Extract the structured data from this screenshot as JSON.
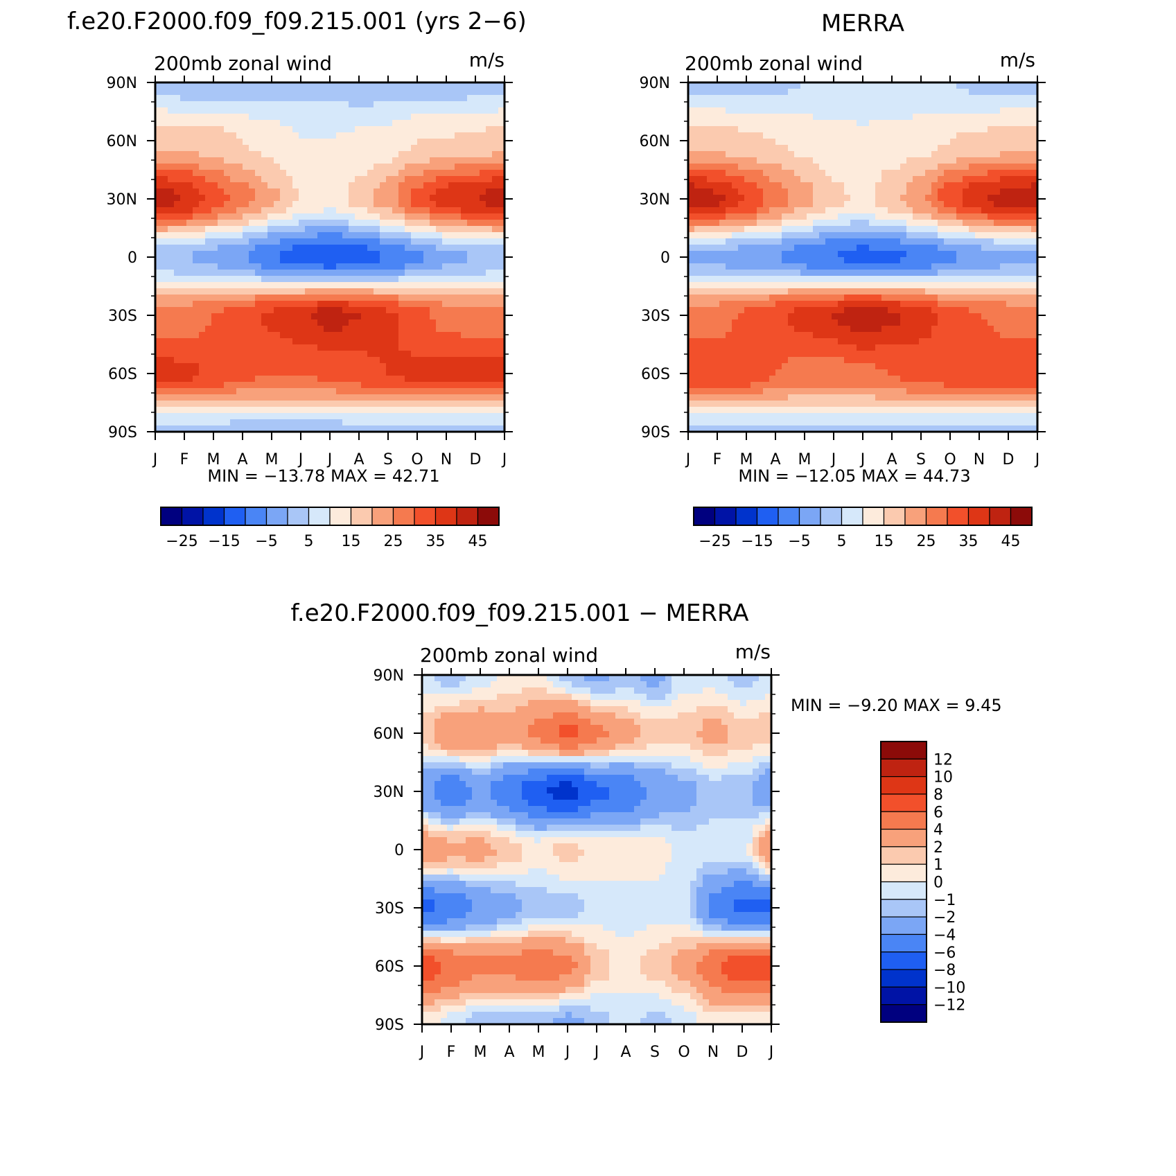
{
  "chart_data": [
    {
      "type": "heatmap",
      "title": "f.e20.F2000.f09_f09.215.001 (yrs 2−6)",
      "subtitle": "200mb  zonal  wind",
      "units": "m/s",
      "x_ticks": [
        "J",
        "F",
        "M",
        "A",
        "M",
        "J",
        "J",
        "A",
        "S",
        "O",
        "N",
        "D",
        "J"
      ],
      "y_ticks": [
        "90N",
        "60N",
        "30N",
        "0",
        "30S",
        "60S",
        "90S"
      ],
      "ylim": [
        -90,
        90
      ],
      "stats": "MIN  =  −13.78  MAX  =    42.71",
      "min": -13.78,
      "max": 42.71,
      "grid_lat": [
        90,
        60,
        30,
        0,
        -30,
        -60,
        -90
      ],
      "z": [
        [
          4,
          2,
          2,
          2,
          2,
          3,
          3,
          2,
          2,
          2,
          2,
          3,
          4
        ],
        [
          17,
          18,
          17,
          15,
          13,
          10,
          10,
          11,
          12,
          15,
          15,
          16,
          17
        ],
        [
          43,
          40,
          33,
          27,
          21,
          15,
          12,
          17,
          23,
          32,
          38,
          40,
          43
        ],
        [
          1,
          0,
          -2,
          -5,
          -10,
          -13,
          -14,
          -13,
          -10,
          -6,
          -2,
          0,
          1
        ],
        [
          26,
          27,
          30,
          33,
          36,
          39,
          42,
          40,
          36,
          32,
          28,
          27,
          26
        ],
        [
          37,
          36,
          34,
          31,
          30,
          30,
          31,
          33,
          35,
          36,
          37,
          37,
          37
        ],
        [
          3,
          3,
          3,
          3,
          3,
          3,
          3,
          3,
          3,
          3,
          3,
          3,
          3
        ]
      ]
    },
    {
      "type": "heatmap",
      "title": "MERRA",
      "subtitle": "200mb  zonal  wind",
      "units": "m/s",
      "x_ticks": [
        "J",
        "F",
        "M",
        "A",
        "M",
        "J",
        "J",
        "A",
        "S",
        "O",
        "N",
        "D",
        "J"
      ],
      "y_ticks": [
        "90N",
        "60N",
        "30N",
        "0",
        "30S",
        "60S",
        "90S"
      ],
      "ylim": [
        -90,
        90
      ],
      "stats": "MIN  =  −12.05  MAX  =    44.73",
      "min": -12.05,
      "max": 44.73,
      "grid_lat": [
        90,
        60,
        30,
        0,
        -30,
        -60,
        -90
      ],
      "z": [
        [
          4,
          4,
          4,
          4,
          5,
          6,
          6,
          6,
          5,
          5,
          4,
          4,
          4
        ],
        [
          17,
          17,
          16,
          15,
          13,
          12,
          11,
          12,
          13,
          15,
          16,
          17,
          17
        ],
        [
          44,
          41,
          35,
          28,
          22,
          16,
          14,
          18,
          24,
          33,
          39,
          42,
          44
        ],
        [
          -1,
          -2,
          -3,
          -5,
          -8,
          -10,
          -12,
          -11,
          -9,
          -6,
          -3,
          -2,
          -1
        ],
        [
          27,
          28,
          31,
          34,
          37,
          40,
          44,
          41,
          37,
          33,
          30,
          28,
          27
        ],
        [
          35,
          34,
          33,
          30,
          28,
          28,
          29,
          30,
          32,
          33,
          34,
          35,
          35
        ],
        [
          4,
          4,
          4,
          4,
          4,
          4,
          4,
          4,
          4,
          4,
          4,
          4,
          4
        ]
      ]
    },
    {
      "type": "heatmap",
      "title": "f.e20.F2000.f09_f09.215.001  −  MERRA",
      "subtitle": "200mb  zonal  wind",
      "units": "m/s",
      "x_ticks": [
        "J",
        "F",
        "M",
        "A",
        "M",
        "J",
        "J",
        "A",
        "S",
        "O",
        "N",
        "D",
        "J"
      ],
      "y_ticks": [
        "90N",
        "60N",
        "30N",
        "0",
        "30S",
        "60S",
        "90S"
      ],
      "ylim": [
        -90,
        90
      ],
      "stats": "MIN  =    −9.20  MAX  =     9.45",
      "min": -9.2,
      "max": 9.45,
      "grid_lat": [
        90,
        60,
        30,
        0,
        -30,
        -60,
        -90
      ],
      "z": [
        [
          -0.5,
          -1.5,
          -0.5,
          0.5,
          0.5,
          -1.5,
          -2.5,
          -1.5,
          -2.5,
          -0.5,
          -0.5,
          -1.5,
          -0.5
        ],
        [
          1.5,
          3.5,
          3.5,
          2.5,
          4.5,
          6.5,
          4.5,
          2.5,
          1.5,
          1.5,
          2.5,
          1.5,
          1.5
        ],
        [
          -3.5,
          -5.5,
          -3.5,
          -5.5,
          -7.5,
          -9.0,
          -6.5,
          -5.5,
          -3.5,
          -2.5,
          -1.5,
          -1.5,
          -3.5
        ],
        [
          3.5,
          2.5,
          2.5,
          1.5,
          0.5,
          1.5,
          0.5,
          0.5,
          0.5,
          -0.5,
          -0.5,
          -0.5,
          3.5
        ],
        [
          -6.5,
          -5.5,
          -3.5,
          -2.5,
          -1.5,
          -1.5,
          -0.5,
          -0.5,
          -0.5,
          -0.5,
          -4.5,
          -6.5,
          -6.5
        ],
        [
          7.5,
          5.5,
          4.5,
          4.5,
          5.5,
          4.5,
          1.5,
          0.5,
          1.5,
          2.5,
          5.5,
          7.5,
          7.5
        ],
        [
          0.5,
          -0.5,
          -1.5,
          -1.5,
          -1.5,
          -2.5,
          -1.5,
          -0.5,
          -1.5,
          -0.5,
          0.5,
          0.5,
          0.5
        ]
      ]
    }
  ],
  "colorbars": {
    "top_labels": [
      "−25",
      "−15",
      "−5",
      "5",
      "15",
      "25",
      "35",
      "45"
    ],
    "top_colors": [
      "#00007f",
      "#0013a6",
      "#0033cc",
      "#1f5ff2",
      "#4a85f5",
      "#7ba6f5",
      "#a9c6f7",
      "#d6e8fa",
      "#fdebdc",
      "#fbcaaf",
      "#f8a17b",
      "#f57a4f",
      "#f2502b",
      "#de3616",
      "#bf2311",
      "#8c0b09"
    ],
    "bottom_labels": [
      "12",
      "10",
      "8",
      "6",
      "4",
      "2",
      "1",
      "0",
      "−1",
      "−2",
      "−4",
      "−6",
      "−8",
      "−10",
      "−12"
    ],
    "bottom_colors": [
      "#8c0b09",
      "#bf2311",
      "#de3616",
      "#f2502b",
      "#f57a4f",
      "#f8a17b",
      "#fbcaaf",
      "#fdebdc",
      "#d6e8fa",
      "#a9c6f7",
      "#7ba6f5",
      "#4a85f5",
      "#1f5ff2",
      "#0033cc",
      "#0013a6",
      "#00007f"
    ]
  }
}
